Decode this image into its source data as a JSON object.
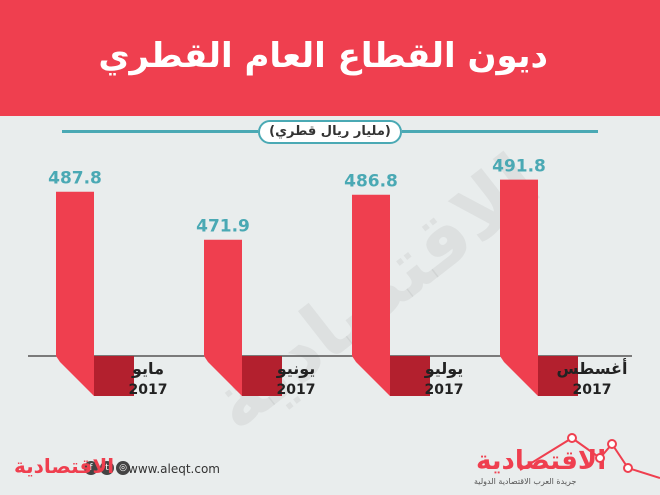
{
  "header": {
    "title": "ديون القطاع العام القطري"
  },
  "unit_label": "(مليار ريال قطري)",
  "chart_data": {
    "type": "bar",
    "title": "ديون القطاع العام القطري",
    "ylabel": "(مليار ريال قطري)",
    "categories": [
      "مايو",
      "يونيو",
      "يوليو",
      "أغسطس"
    ],
    "years": [
      "2017",
      "2017",
      "2017",
      "2017"
    ],
    "values": [
      487.8,
      471.9,
      486.8,
      491.8
    ],
    "value_labels": [
      "487.8",
      "471.9",
      "486.8",
      "491.8"
    ],
    "ylim": [
      440,
      495
    ],
    "colors": {
      "bar": "#ef3f4f",
      "shadow": "#b3202e",
      "value": "#4aa9b4",
      "axis": "#555555"
    }
  },
  "footer": {
    "url": "www.aleqt.com",
    "logo_left": "الاقتصادية",
    "logo_right": "الاقتصادية",
    "logo_sub": "جريدة العرب الاقتصادية الدولية",
    "social_icons": [
      "facebook-icon",
      "twitter-icon",
      "instagram-icon"
    ]
  },
  "watermark": "الاقتصادية"
}
